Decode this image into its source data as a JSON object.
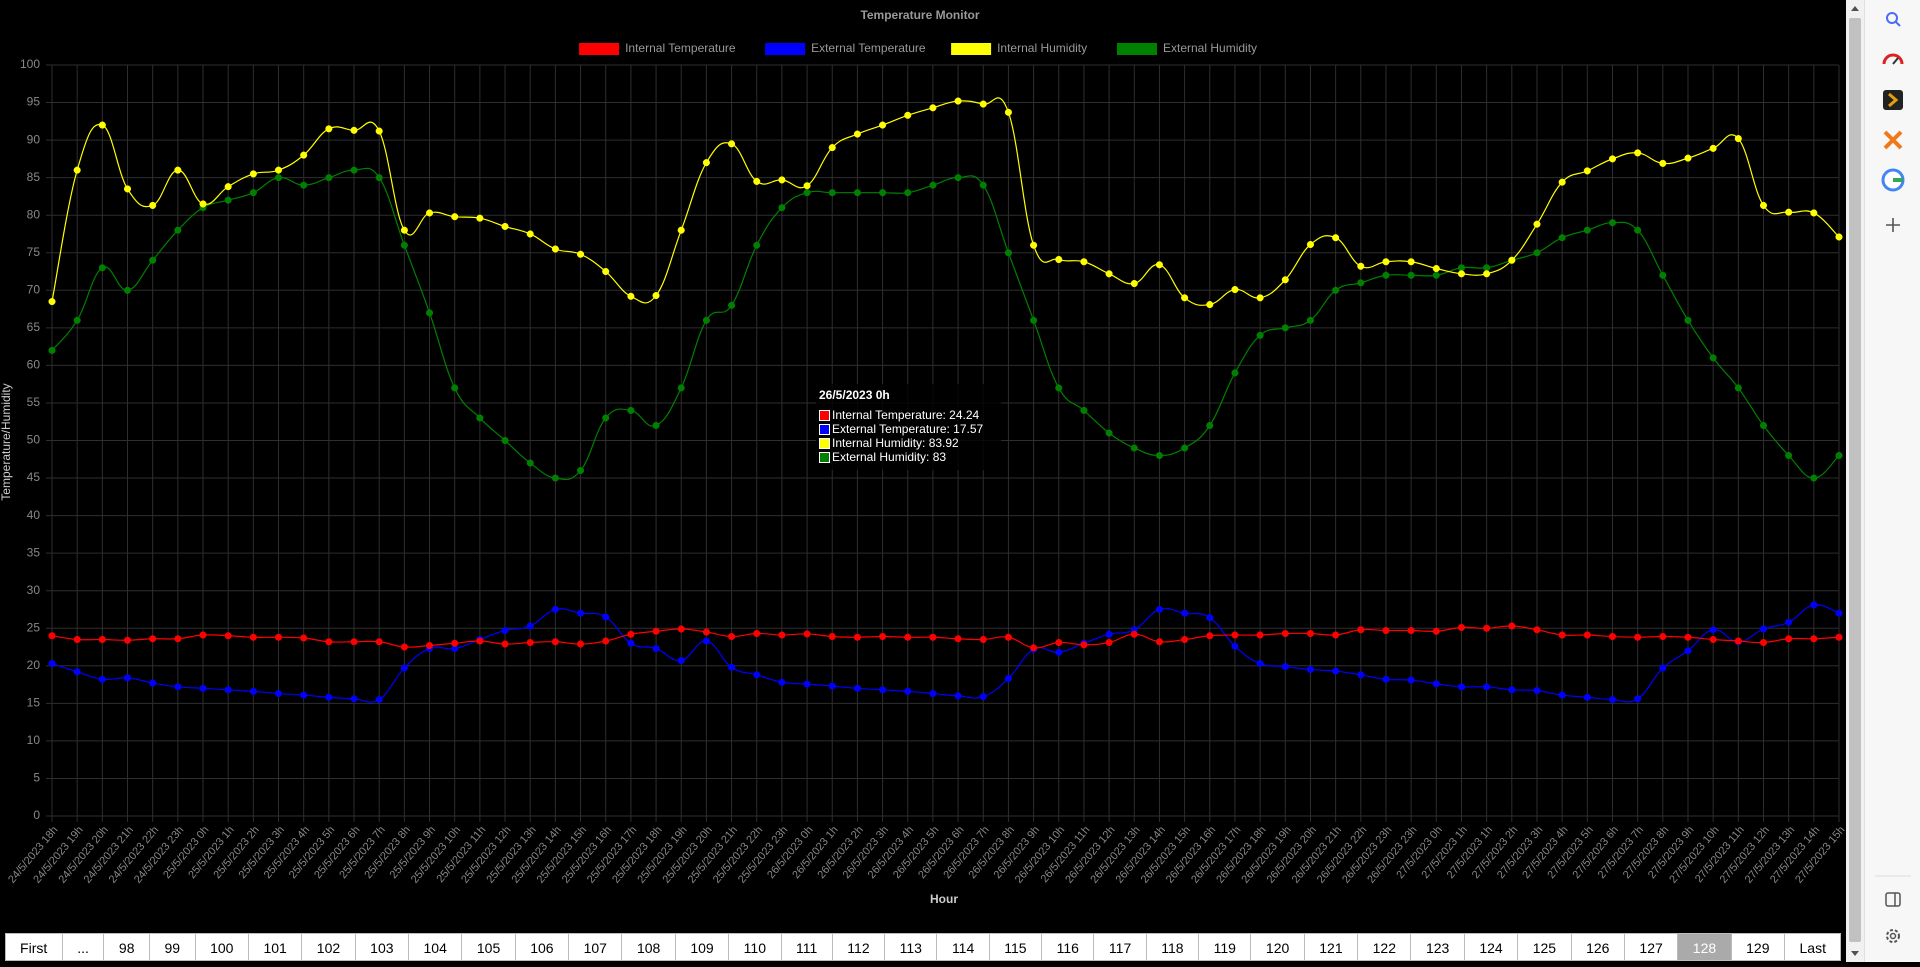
{
  "chart_data": {
    "type": "line",
    "title": "Temperature Monitor",
    "x_label": "Hour",
    "y_label": "Temperature/Humidity",
    "categories": [
      "24/5/2023 18h",
      "24/5/2023 19h",
      "24/5/2023 20h",
      "24/5/2023 21h",
      "24/5/2023 22h",
      "24/5/2023 23h",
      "25/5/2023 0h",
      "25/5/2023 1h",
      "25/5/2023 2h",
      "25/5/2023 3h",
      "25/5/2023 4h",
      "25/5/2023 5h",
      "25/5/2023 6h",
      "25/5/2023 7h",
      "25/5/2023 8h",
      "25/5/2023 9h",
      "25/5/2023 10h",
      "25/5/2023 11h",
      "25/5/2023 12h",
      "25/5/2023 13h",
      "25/5/2023 14h",
      "25/5/2023 15h",
      "25/5/2023 16h",
      "25/5/2023 17h",
      "25/5/2023 18h",
      "25/5/2023 19h",
      "25/5/2023 20h",
      "25/5/2023 21h",
      "25/5/2023 22h",
      "25/5/2023 23h",
      "26/5/2023 0h",
      "26/5/2023 1h",
      "26/5/2023 2h",
      "26/5/2023 3h",
      "26/5/2023 4h",
      "26/5/2023 5h",
      "26/5/2023 6h",
      "26/5/2023 7h",
      "26/5/2023 8h",
      "26/5/2023 9h",
      "26/5/2023 10h",
      "26/5/2023 11h",
      "26/5/2023 12h",
      "26/5/2023 13h",
      "26/5/2023 14h",
      "26/5/2023 15h",
      "26/5/2023 16h",
      "26/5/2023 17h",
      "26/5/2023 18h",
      "26/5/2023 19h",
      "26/5/2023 20h",
      "26/5/2023 21h",
      "26/5/2023 22h",
      "26/5/2023 23h",
      "26/5/2023 23h",
      "27/5/2023 0h",
      "27/5/2023 1h",
      "27/5/2023 1h",
      "27/5/2023 2h",
      "27/5/2023 3h",
      "27/5/2023 4h",
      "27/5/2023 5h",
      "27/5/2023 6h",
      "27/5/2023 7h",
      "27/5/2023 8h",
      "27/5/2023 9h",
      "27/5/2023 10h",
      "27/5/2023 11h",
      "27/5/2023 12h",
      "27/5/2023 13h",
      "27/5/2023 14h",
      "27/5/2023 15h"
    ],
    "series": [
      {
        "name": "Internal Temperature",
        "color": "#ff0000",
        "values": [
          24,
          23.5,
          23.5,
          23.4,
          23.6,
          23.6,
          24.1,
          24,
          23.8,
          23.8,
          23.7,
          23.2,
          23.2,
          23.2,
          22.5,
          22.7,
          23,
          23.3,
          22.9,
          23.1,
          23.2,
          22.9,
          23.3,
          24.2,
          24.6,
          24.9,
          24.5,
          23.9,
          24.3,
          24.1,
          24.24,
          23.9,
          23.8,
          23.9,
          23.8,
          23.8,
          23.6,
          23.5,
          23.8,
          22.4,
          23.1,
          22.8,
          23.1,
          24.2,
          23.2,
          23.5,
          24,
          24.1,
          24.1,
          24.3,
          24.3,
          24.1,
          24.8,
          24.7,
          24.7,
          24.6,
          25.1,
          25,
          25.3,
          24.8,
          24.1,
          24.1,
          23.9,
          23.8,
          23.9,
          23.8,
          23.5,
          23.3,
          23.1,
          23.6,
          23.6,
          23.8
        ]
      },
      {
        "name": "External Temperature",
        "color": "#0000ff",
        "values": [
          20.3,
          19.2,
          18.2,
          18.4,
          17.7,
          17.2,
          17,
          16.8,
          16.6,
          16.3,
          16.1,
          15.8,
          15.6,
          15.5,
          19.7,
          22.3,
          22.3,
          23.5,
          24.7,
          25.3,
          27.5,
          27,
          26.5,
          23,
          22.3,
          20.7,
          23.3,
          19.8,
          18.8,
          17.8,
          17.57,
          17.3,
          17,
          16.8,
          16.6,
          16.3,
          16,
          15.9,
          18.3,
          22.2,
          21.8,
          23,
          24.2,
          24.8,
          27.5,
          27,
          26.4,
          22.6,
          20.3,
          19.9,
          19.5,
          19.3,
          18.8,
          18.2,
          18.1,
          17.6,
          17.2,
          17.2,
          16.8,
          16.7,
          16.1,
          15.8,
          15.5,
          15.6,
          19.7,
          22,
          24.8,
          23.2,
          24.9,
          25.8,
          28.1,
          27
        ]
      },
      {
        "name": "Internal Humidity",
        "color": "#ffff00",
        "values": [
          68.5,
          86,
          92,
          83.5,
          81.3,
          86,
          81.5,
          83.8,
          85.5,
          86,
          88,
          91.5,
          91.3,
          91.2,
          78,
          80.3,
          79.8,
          79.6,
          78.5,
          77.5,
          75.5,
          74.8,
          72.5,
          69.2,
          69.3,
          78,
          87,
          89.5,
          84.5,
          84.7,
          83.92,
          89,
          90.8,
          92,
          93.3,
          94.3,
          95.2,
          94.8,
          93.7,
          76,
          74.1,
          73.8,
          72.2,
          70.9,
          73.4,
          69,
          68.1,
          70.1,
          69,
          71.4,
          76.1,
          77,
          73.2,
          73.8,
          73.8,
          72.9,
          72.2,
          72.2,
          74,
          78.8,
          84.4,
          85.9,
          87.5,
          88.3,
          86.9,
          87.6,
          88.9,
          90.2,
          81.3,
          80.4,
          80.3,
          77.1
        ]
      },
      {
        "name": "External Humidity",
        "color": "#008000",
        "values": [
          62,
          66,
          73,
          70,
          74,
          78,
          81,
          82,
          83,
          85,
          84,
          85,
          86,
          85,
          76,
          67,
          57,
          53,
          50,
          47,
          45,
          46,
          53,
          54,
          52,
          57,
          66,
          68,
          76,
          81,
          83,
          83,
          83,
          83,
          83,
          84,
          85,
          84,
          75,
          66,
          57,
          54,
          51,
          49,
          48,
          49,
          52,
          59,
          64,
          65,
          66,
          70,
          71,
          72,
          72,
          72,
          73,
          73,
          74,
          75,
          77,
          78,
          79,
          78,
          72,
          66,
          61,
          57,
          52,
          48,
          45,
          48
        ]
      }
    ],
    "ylim": [
      0,
      100
    ],
    "yticks": [
      0,
      5,
      10,
      15,
      20,
      25,
      30,
      35,
      40,
      45,
      50,
      55,
      60,
      65,
      70,
      75,
      80,
      85,
      90,
      95,
      100
    ],
    "grid": true,
    "legend": "top",
    "tooltip": {
      "title": "26/5/2023 0h",
      "lines": [
        "Internal Temperature: 24.24",
        "External Temperature: 17.57",
        "Internal Humidity: 83.92",
        "External Humidity: 83"
      ]
    }
  },
  "pagination": {
    "buttons": [
      {
        "label": "First"
      },
      {
        "label": "..."
      },
      {
        "label": "98"
      },
      {
        "label": "99"
      },
      {
        "label": "100"
      },
      {
        "label": "101"
      },
      {
        "label": "102"
      },
      {
        "label": "103"
      },
      {
        "label": "104"
      },
      {
        "label": "105"
      },
      {
        "label": "106"
      },
      {
        "label": "107"
      },
      {
        "label": "108"
      },
      {
        "label": "109"
      },
      {
        "label": "110"
      },
      {
        "label": "111"
      },
      {
        "label": "112"
      },
      {
        "label": "113"
      },
      {
        "label": "114"
      },
      {
        "label": "115"
      },
      {
        "label": "116"
      },
      {
        "label": "117"
      },
      {
        "label": "118"
      },
      {
        "label": "119"
      },
      {
        "label": "120"
      },
      {
        "label": "121"
      },
      {
        "label": "122"
      },
      {
        "label": "123"
      },
      {
        "label": "124"
      },
      {
        "label": "125"
      },
      {
        "label": "126"
      },
      {
        "label": "127"
      },
      {
        "label": "128",
        "active": true
      },
      {
        "label": "129"
      },
      {
        "label": "Last"
      }
    ]
  }
}
